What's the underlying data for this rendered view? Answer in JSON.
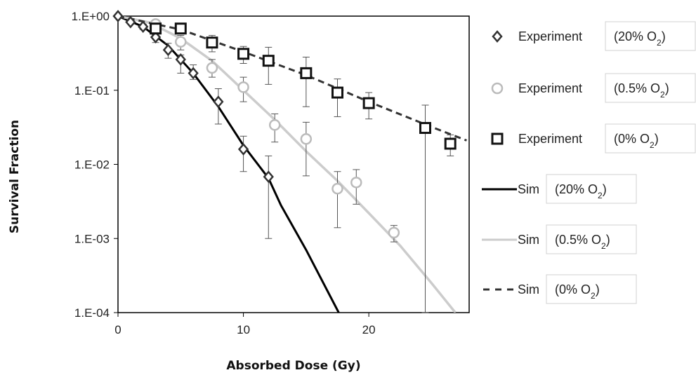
{
  "chart_data": {
    "type": "scatter",
    "xlabel": "Absorbed Dose (Gy)",
    "ylabel": "Survival Fraction",
    "xlim": [
      0,
      28
    ],
    "ylim": [
      0.0001,
      1
    ],
    "yscale": "log",
    "x_ticks": [
      0,
      10,
      20
    ],
    "x_tick_labels": [
      "0",
      "10",
      "20"
    ],
    "y_ticks": [
      1,
      0.1,
      0.01,
      0.001,
      0.0001
    ],
    "y_tick_labels": [
      "1.E+00",
      "1.E-01",
      "1.E-02",
      "1.E-03",
      "1.E-04"
    ],
    "grid": false,
    "legend_position": "right",
    "series": [
      {
        "kind": "points",
        "marker": "diamond",
        "color": "#333333",
        "legend_label": "Experiment",
        "legend_tag": "(20% O",
        "legend_sub": "2",
        "legend_tag_end": ")",
        "points": [
          {
            "x": 0,
            "y": 1.0
          },
          {
            "x": 1,
            "y": 0.83,
            "lo": 0.78,
            "hi": 0.88
          },
          {
            "x": 2,
            "y": 0.72,
            "lo": 0.66,
            "hi": 0.78
          },
          {
            "x": 3,
            "y": 0.52,
            "lo": 0.44,
            "hi": 0.6
          },
          {
            "x": 4,
            "y": 0.35,
            "lo": 0.27,
            "hi": 0.43
          },
          {
            "x": 5,
            "y": 0.26,
            "lo": 0.17,
            "hi": 0.3
          },
          {
            "x": 6,
            "y": 0.17,
            "lo": 0.14,
            "hi": 0.22
          },
          {
            "x": 8,
            "y": 0.07,
            "lo": 0.035,
            "hi": 0.105
          },
          {
            "x": 10,
            "y": 0.016,
            "lo": 0.008,
            "hi": 0.024
          },
          {
            "x": 12,
            "y": 0.0068,
            "lo": 0.001,
            "hi": 0.013
          }
        ]
      },
      {
        "kind": "points",
        "marker": "circle",
        "color": "#bbbbbb",
        "legend_label": "Experiment",
        "legend_tag": "(0.5% O",
        "legend_sub": "2",
        "legend_tag_end": ")",
        "points": [
          {
            "x": 3,
            "y": 0.78,
            "lo": 0.72,
            "hi": 0.86
          },
          {
            "x": 5,
            "y": 0.45,
            "lo": 0.35,
            "hi": 0.55
          },
          {
            "x": 7.5,
            "y": 0.2,
            "lo": 0.15,
            "hi": 0.26
          },
          {
            "x": 10,
            "y": 0.11,
            "lo": 0.07,
            "hi": 0.15
          },
          {
            "x": 12.5,
            "y": 0.034,
            "lo": 0.02,
            "hi": 0.048
          },
          {
            "x": 15,
            "y": 0.022,
            "lo": 0.007,
            "hi": 0.037
          },
          {
            "x": 17.5,
            "y": 0.0047,
            "lo": 0.0014,
            "hi": 0.008
          },
          {
            "x": 19,
            "y": 0.0057,
            "lo": 0.0029,
            "hi": 0.0085
          },
          {
            "x": 22,
            "y": 0.0012,
            "lo": 0.0009,
            "hi": 0.0015
          }
        ]
      },
      {
        "kind": "points",
        "marker": "square",
        "color": "#111111",
        "legend_label": "Experiment",
        "legend_tag": "(0% O",
        "legend_sub": "2",
        "legend_tag_end": ")",
        "points": [
          {
            "x": 3,
            "y": 0.68,
            "lo": 0.6,
            "hi": 0.76
          },
          {
            "x": 5,
            "y": 0.68,
            "lo": 0.6,
            "hi": 0.76
          },
          {
            "x": 7.5,
            "y": 0.44,
            "lo": 0.33,
            "hi": 0.55
          },
          {
            "x": 10,
            "y": 0.31,
            "lo": 0.23,
            "hi": 0.39
          },
          {
            "x": 12,
            "y": 0.25,
            "lo": 0.12,
            "hi": 0.38
          },
          {
            "x": 15,
            "y": 0.17,
            "lo": 0.06,
            "hi": 0.28
          },
          {
            "x": 17.5,
            "y": 0.093,
            "lo": 0.044,
            "hi": 0.142
          },
          {
            "x": 20,
            "y": 0.067,
            "lo": 0.041,
            "hi": 0.093
          },
          {
            "x": 24.5,
            "y": 0.031,
            "lo": 0.0001,
            "hi": 0.063
          },
          {
            "x": 26.5,
            "y": 0.019,
            "lo": 0.013,
            "hi": 0.025
          }
        ]
      },
      {
        "kind": "line",
        "style": "solid",
        "color": "#000000",
        "legend_label": "Sim",
        "legend_tag": "(20% O",
        "legend_sub": "2",
        "legend_tag_end": ")",
        "points": [
          {
            "x": 0,
            "y": 1.0
          },
          {
            "x": 2,
            "y": 0.72
          },
          {
            "x": 4,
            "y": 0.4
          },
          {
            "x": 6,
            "y": 0.17
          },
          {
            "x": 8,
            "y": 0.06
          },
          {
            "x": 10,
            "y": 0.018
          },
          {
            "x": 12,
            "y": 0.0065
          },
          {
            "x": 13,
            "y": 0.0028
          },
          {
            "x": 15,
            "y": 0.0007
          },
          {
            "x": 17.6,
            "y": 0.0001
          }
        ]
      },
      {
        "kind": "line",
        "style": "solid",
        "color": "#cccccc",
        "legend_label": "Sim",
        "legend_tag": "(0.5% O",
        "legend_sub": "2",
        "legend_tag_end": ")",
        "points": [
          {
            "x": 0,
            "y": 1.0
          },
          {
            "x": 2.5,
            "y": 0.82
          },
          {
            "x": 5,
            "y": 0.5
          },
          {
            "x": 7.5,
            "y": 0.25
          },
          {
            "x": 10,
            "y": 0.1
          },
          {
            "x": 12.5,
            "y": 0.04
          },
          {
            "x": 15,
            "y": 0.015
          },
          {
            "x": 17.5,
            "y": 0.006
          },
          {
            "x": 20,
            "y": 0.0022
          },
          {
            "x": 22.5,
            "y": 0.0008
          },
          {
            "x": 25,
            "y": 0.00025
          },
          {
            "x": 26.9,
            "y": 0.0001
          }
        ]
      },
      {
        "kind": "line",
        "style": "dashed",
        "color": "#333333",
        "legend_label": "Sim",
        "legend_tag": "(0% O",
        "legend_sub": "2",
        "legend_tag_end": ")",
        "points": [
          {
            "x": 0,
            "y": 1.0
          },
          {
            "x": 5,
            "y": 0.66
          },
          {
            "x": 10,
            "y": 0.33
          },
          {
            "x": 15,
            "y": 0.16
          },
          {
            "x": 20,
            "y": 0.07
          },
          {
            "x": 25,
            "y": 0.032
          },
          {
            "x": 27.8,
            "y": 0.021
          }
        ]
      }
    ]
  }
}
